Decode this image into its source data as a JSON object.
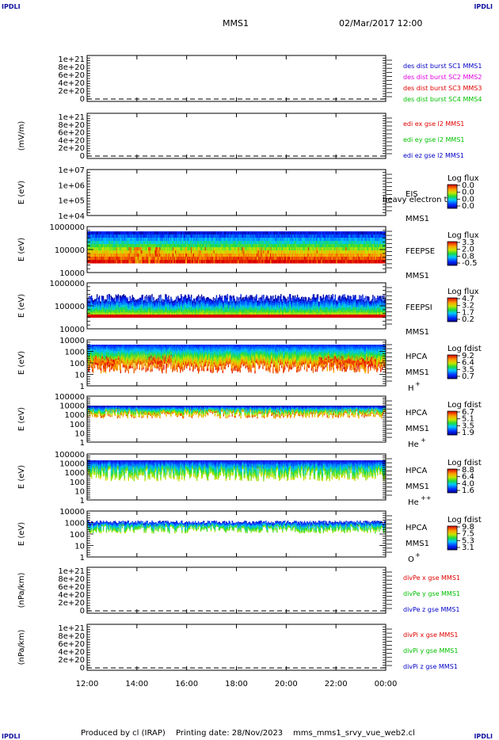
{
  "corners": {
    "tl": "IPDLI",
    "tr": "IPDLI",
    "bl": "IPDLI",
    "br": "IPDLI"
  },
  "header": {
    "title": "MMS1",
    "date": "02/Mar/2017 12:00"
  },
  "footer": {
    "produced": "Produced by cl (IRAP)",
    "printing": "Printing date: 28/Nov/2023",
    "script": "mms_mms1_srvy_vue_web2.cl"
  },
  "chart_data": {
    "type": "heatmap",
    "x": {
      "ticks": [
        "12:00",
        "14:00",
        "16:00",
        "18:00",
        "20:00",
        "22:00",
        "00:00"
      ],
      "range_hours": [
        12,
        24
      ]
    },
    "panels": [
      {
        "kind": "line",
        "ylabel": "",
        "yticks": [
          "1e+21",
          "8e+20",
          "6e+20",
          "4e+20",
          "2e+20",
          "0"
        ],
        "legend": [
          {
            "text": "des dist burst SC1 MMS1",
            "color": "#0000c8"
          },
          {
            "text": "des dist burst SC2 MMS2",
            "color": "#e000e0"
          },
          {
            "text": "des dist burst SC3 MMS3",
            "color": "#e00000"
          },
          {
            "text": "des dist burst SC4 MMS4",
            "color": "#00c000"
          }
        ],
        "zero_dashed": true
      },
      {
        "kind": "line",
        "ylabel": "(mV/m)",
        "yticks": [
          "1e+21",
          "8e+20",
          "6e+20",
          "4e+20",
          "2e+20",
          "0"
        ],
        "legend": [
          {
            "text": "edi ex gse l2 MMS1",
            "color": "#e00000"
          },
          {
            "text": "edi ey gse l2 MMS1",
            "color": "#00c000"
          },
          {
            "text": "edi ez gse l2 MMS1",
            "color": "#0000c8"
          }
        ],
        "zero_dashed": true
      },
      {
        "kind": "spec",
        "ylabel": "E (eV)",
        "yticks": [
          "1e+07",
          "1e+06",
          "1e+05",
          "1e+04"
        ],
        "label1": "EIS",
        "label2": "MMS1",
        "overlay": "heavy electron to",
        "cbar_title": "Log flux",
        "cbar_ticks": [
          "0.0",
          "0.0",
          "0.0",
          "0.0"
        ],
        "data": "empty"
      },
      {
        "kind": "spec",
        "ylabel": "E (eV)",
        "yticks": [
          "1000000",
          "100000",
          "10000"
        ],
        "label1": "FEEPSE",
        "label2": "MMS1",
        "cbar_title": "Log flux",
        "cbar_ticks": [
          "3.3",
          "2.0",
          "0.8",
          "-0.5"
        ],
        "data": "feepse"
      },
      {
        "kind": "spec",
        "ylabel": "E (eV)",
        "yticks": [
          "1000000",
          "100000",
          "10000"
        ],
        "label1": "FEEPSI",
        "label2": "MMS1",
        "cbar_title": "Log flux",
        "cbar_ticks": [
          "4.7",
          "3.2",
          "1.7",
          "0.2"
        ],
        "data": "feepsi"
      },
      {
        "kind": "spec",
        "ylabel": "E (eV)",
        "yticks": [
          "10000",
          "1000",
          "100",
          "10",
          "1"
        ],
        "label1": "HPCA",
        "label2": "MMS1",
        "species": "H",
        "sup": "+",
        "cbar_title": "Log fdist",
        "cbar_ticks": [
          "9.2",
          "6.4",
          "3.5",
          "0.7"
        ],
        "data": "hplus"
      },
      {
        "kind": "spec",
        "ylabel": "E (eV)",
        "yticks": [
          "100000",
          "10000",
          "1000",
          "100",
          "10",
          "1"
        ],
        "label1": "HPCA",
        "label2": "MMS1",
        "species": "He",
        "sup": "+",
        "cbar_title": "Log fdist",
        "cbar_ticks": [
          "6.7",
          "5.1",
          "3.5",
          "1.9"
        ],
        "data": "heplus"
      },
      {
        "kind": "spec",
        "ylabel": "E (eV)",
        "yticks": [
          "100000",
          "10000",
          "1000",
          "100",
          "10",
          "1"
        ],
        "label1": "HPCA",
        "label2": "MMS1",
        "species": "He",
        "sup": "++",
        "cbar_title": "Log fdist",
        "cbar_ticks": [
          "8.8",
          "6.4",
          "4.0",
          "1.6"
        ],
        "data": "heplusplus"
      },
      {
        "kind": "spec",
        "ylabel": "E (eV)",
        "yticks": [
          "10000",
          "1000",
          "100",
          "10",
          "1"
        ],
        "label1": "HPCA",
        "label2": "MMS1",
        "species": "O",
        "sup": "+",
        "cbar_title": "Log fdist",
        "cbar_ticks": [
          "9.8",
          "7.5",
          "5.3",
          "3.1"
        ],
        "data": "oplus"
      },
      {
        "kind": "line",
        "ylabel": "(nPa/km)",
        "yticks": [
          "1e+21",
          "8e+20",
          "6e+20",
          "4e+20",
          "2e+20",
          "0"
        ],
        "legend": [
          {
            "text": "divPe x gse MMS1",
            "color": "#e00000"
          },
          {
            "text": "divPe y gse MMS1",
            "color": "#00c000"
          },
          {
            "text": "divPe z gse MMS1",
            "color": "#0000c8"
          }
        ],
        "zero_dashed": true
      },
      {
        "kind": "line",
        "ylabel": "(nPa/km)",
        "yticks": [
          "1e+21",
          "8e+20",
          "6e+20",
          "4e+20",
          "2e+20",
          "0"
        ],
        "legend": [
          {
            "text": "divPi x gse MMS1",
            "color": "#e00000"
          },
          {
            "text": "divPi y gse MMS1",
            "color": "#00c000"
          },
          {
            "text": "divPi z gse MMS1",
            "color": "#0000c8"
          }
        ],
        "zero_dashed": true
      }
    ]
  }
}
